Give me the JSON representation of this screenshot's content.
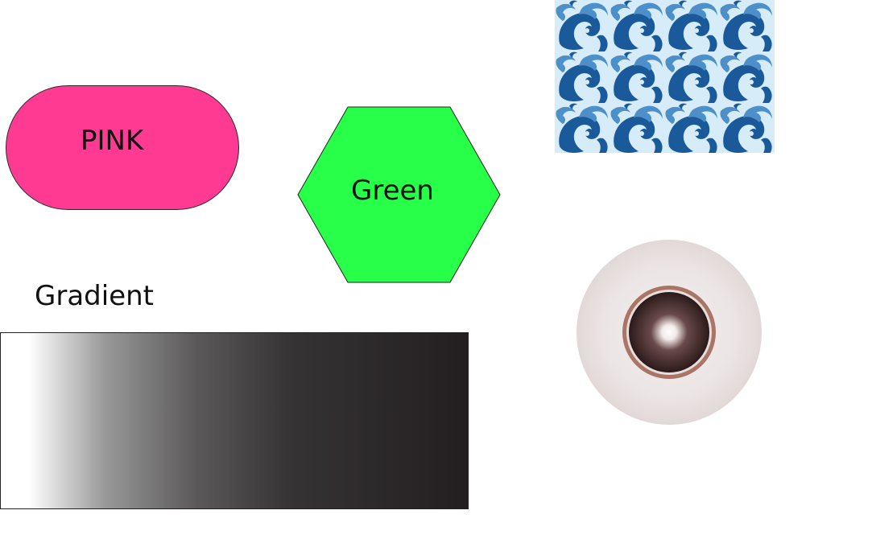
{
  "shapes": {
    "pink": {
      "label": "PINK",
      "color": "#fe3a93"
    },
    "green": {
      "label": "Green",
      "color": "#27ff49"
    },
    "gradient": {
      "label": "Gradient",
      "start_color": "#ffffff",
      "end_color": "#231f20"
    },
    "pattern": {
      "light_color": "#d6ecf8",
      "dark_color": "#1a5a9a",
      "mid_color": "#4d8fc9"
    },
    "eye": {
      "sclera_color": "#e9e1e1",
      "iris_ring_color": "#a87566",
      "pupil_color": "#2b1a1a"
    }
  }
}
